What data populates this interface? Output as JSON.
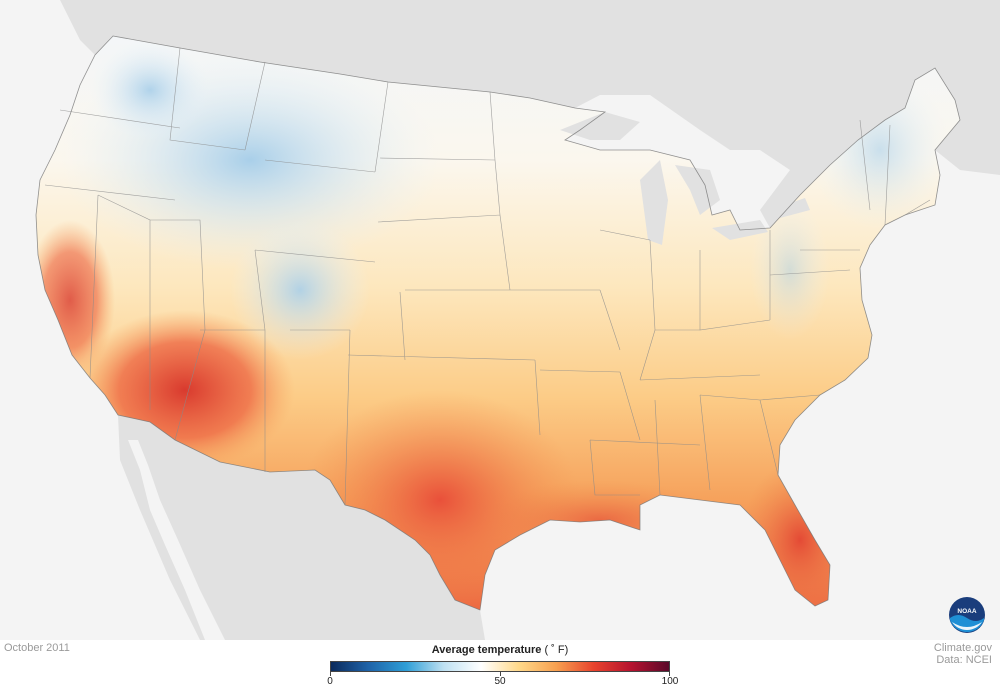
{
  "map": {
    "period": "October 2011",
    "legend": {
      "title": "Average temperature",
      "unit": "( ˚ F)",
      "ticks": [
        {
          "value": 0,
          "label": "0"
        },
        {
          "value": 50,
          "label": "50"
        },
        {
          "value": 100,
          "label": "100"
        }
      ],
      "range": [
        0,
        100
      ],
      "colors": [
        "#0b2a5c",
        "#1f63a8",
        "#2f9ed6",
        "#bfe1f2",
        "#ffffff",
        "#ffd98a",
        "#f7a050",
        "#e8432d",
        "#b5122f",
        "#5a0a2a"
      ]
    },
    "credits": {
      "site": "Climate.gov",
      "data": "Data: NCEI"
    },
    "logo": {
      "icon": "noaa-logo-icon",
      "text": "NOAA"
    }
  }
}
